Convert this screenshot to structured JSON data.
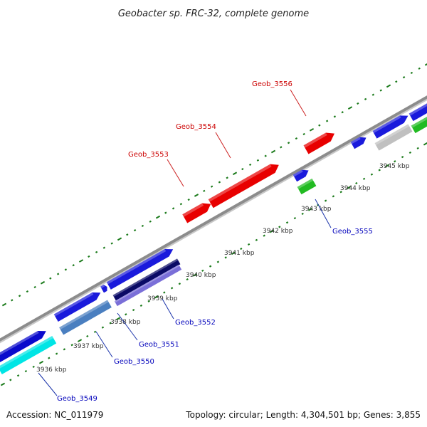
{
  "title": "Geobacter sp. FRC-32, complete genome",
  "footer": {
    "accession": "Accession: NC_011979",
    "topology": "Topology: circular; Length: 4,304,501 bp; Genes: 3,855"
  },
  "colors": {
    "backbone": "#8c8c8c",
    "tick": "#1a7a1a",
    "label_red": "#cc0000",
    "label_blue": "#0000bb"
  },
  "kbp_labels": [
    "3936 kbp",
    "3937 kbp",
    "3938 kbp",
    "3939 kbp",
    "3940 kbp",
    "3941 kbp",
    "3942 kbp",
    "3943 kbp",
    "3944 kbp",
    "3945 kbp"
  ],
  "gene_labels": {
    "geob_3549": "Geob_3549",
    "geob_3550": "Geob_3550",
    "geob_3551": "Geob_3551",
    "geob_3552": "Geob_3552",
    "geob_3553": "Geob_3553",
    "geob_3554": "Geob_3554",
    "geob_3555": "Geob_3555",
    "geob_3556": "Geob_3556"
  }
}
